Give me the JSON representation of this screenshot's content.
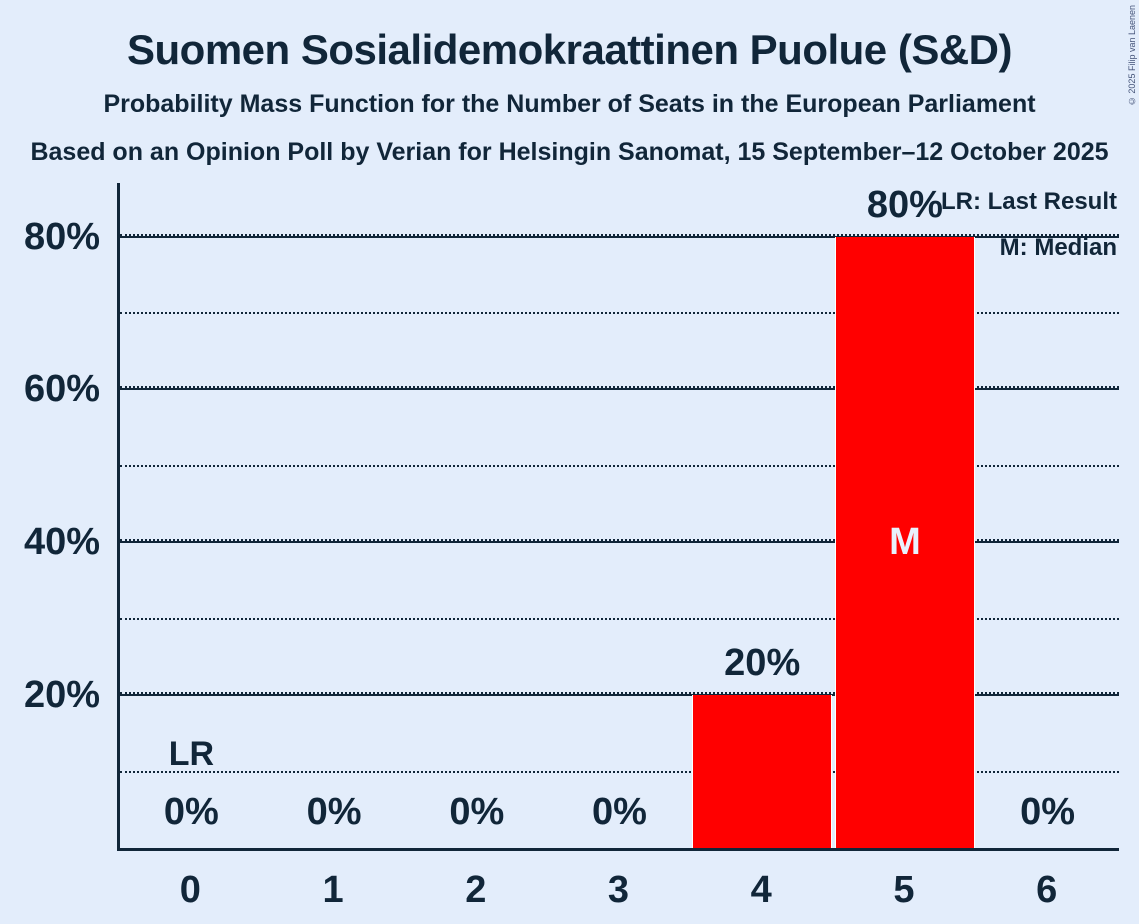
{
  "page": {
    "background": "#e3edfb",
    "text_color": "#112639",
    "bar_color": "#ff0000"
  },
  "header": {
    "title": "Suomen Sosialidemokraattinen Puolue (S&D)",
    "subtitle": "Probability Mass Function for the Number of Seats in the European Parliament",
    "source": "Based on an Opinion Poll by Verian for Helsingin Sanomat, 15 September–12 October 2025",
    "copyright": "© 2025 Filip van Laenen"
  },
  "legend": {
    "lr": "LR: Last Result",
    "m": "M: Median"
  },
  "chart_data": {
    "type": "bar",
    "title": "Suomen Sosialidemokraattinen Puolue (S&D)",
    "subtitle": "Probability Mass Function for the Number of Seats in the European Parliament",
    "source": "Based on an Opinion Poll by Verian for Helsingin Sanomat, 15 September–12 October 2025",
    "categories": [
      "0",
      "1",
      "2",
      "3",
      "4",
      "5",
      "6"
    ],
    "values": [
      0,
      0,
      0,
      0,
      20,
      80,
      0
    ],
    "value_labels": [
      "0%",
      "0%",
      "0%",
      "0%",
      "20%",
      "80%",
      "0%"
    ],
    "xlabel": "",
    "ylabel": "",
    "ylim": [
      0,
      87
    ],
    "y_ticks": [
      {
        "pct": 20,
        "label": "20%"
      },
      {
        "pct": 40,
        "label": "40%"
      },
      {
        "pct": 60,
        "label": "60%"
      },
      {
        "pct": 80,
        "label": "80%"
      }
    ],
    "gridlines": [
      {
        "pct": 10,
        "style": "dotted"
      },
      {
        "pct": 20,
        "style": "solid"
      },
      {
        "pct": 30,
        "style": "dotted"
      },
      {
        "pct": 40,
        "style": "solid"
      },
      {
        "pct": 50,
        "style": "dotted"
      },
      {
        "pct": 60,
        "style": "solid"
      },
      {
        "pct": 70,
        "style": "dotted"
      },
      {
        "pct": 80,
        "style": "solid"
      }
    ],
    "grid": true,
    "legend_position": "top-right",
    "bar_color": "#ff0000",
    "annotations": {
      "last_result": {
        "category": "0",
        "label": "LR"
      },
      "median": {
        "category": "5",
        "label": "M"
      }
    }
  }
}
